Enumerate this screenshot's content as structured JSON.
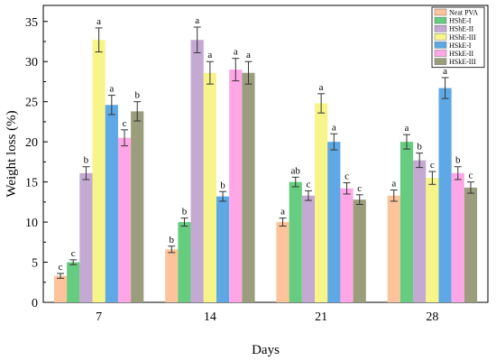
{
  "chart_data": {
    "type": "bar",
    "xlabel": "Days",
    "ylabel": "Weight loss (%)",
    "ylim": [
      0,
      37
    ],
    "yticks": [
      0,
      5,
      10,
      15,
      20,
      25,
      30,
      35
    ],
    "categories": [
      "7",
      "14",
      "21",
      "28"
    ],
    "legend_position": "top-right",
    "grid": false,
    "series": [
      {
        "name": "Neat PVA",
        "color": "#FDC39A",
        "values": [
          3.3,
          6.6,
          10.0,
          13.3
        ],
        "errors": [
          0.3,
          0.4,
          0.5,
          0.7
        ],
        "letters": [
          "c",
          "b",
          "a",
          "a"
        ]
      },
      {
        "name": "HShE-I",
        "color": "#66CC80",
        "values": [
          5.0,
          10.0,
          15.0,
          20.0
        ],
        "errors": [
          0.3,
          0.5,
          0.6,
          0.9
        ],
        "letters": [
          "c",
          "b",
          "ab",
          "a"
        ]
      },
      {
        "name": "HShE-II",
        "color": "#C4A9D2",
        "values": [
          16.1,
          32.7,
          13.3,
          17.7
        ],
        "errors": [
          0.8,
          1.6,
          0.6,
          0.9
        ],
        "letters": [
          "b",
          "a",
          "c",
          "b"
        ]
      },
      {
        "name": "HShE-III",
        "color": "#F7F48A",
        "values": [
          32.7,
          28.6,
          24.8,
          15.5
        ],
        "errors": [
          1.5,
          1.4,
          1.2,
          0.8
        ],
        "letters": [
          "a",
          "a",
          "a",
          "c"
        ]
      },
      {
        "name": "HSkE-I",
        "color": "#5FA8E6",
        "values": [
          24.6,
          13.2,
          20.0,
          26.7
        ],
        "errors": [
          1.2,
          0.6,
          1.0,
          1.3
        ],
        "letters": [
          "a",
          "b",
          "a",
          "a"
        ]
      },
      {
        "name": "HSkE-II",
        "color": "#FFA6E6",
        "values": [
          20.5,
          29.0,
          14.2,
          16.1
        ],
        "errors": [
          1.0,
          1.4,
          0.7,
          0.8
        ],
        "letters": [
          "c",
          "a",
          "c",
          "b"
        ]
      },
      {
        "name": "HSkE-III",
        "color": "#9A9E7C",
        "values": [
          23.8,
          28.6,
          12.8,
          14.3
        ],
        "errors": [
          1.2,
          1.4,
          0.6,
          0.7
        ],
        "letters": [
          "b",
          "a",
          "c",
          "c"
        ]
      }
    ]
  }
}
